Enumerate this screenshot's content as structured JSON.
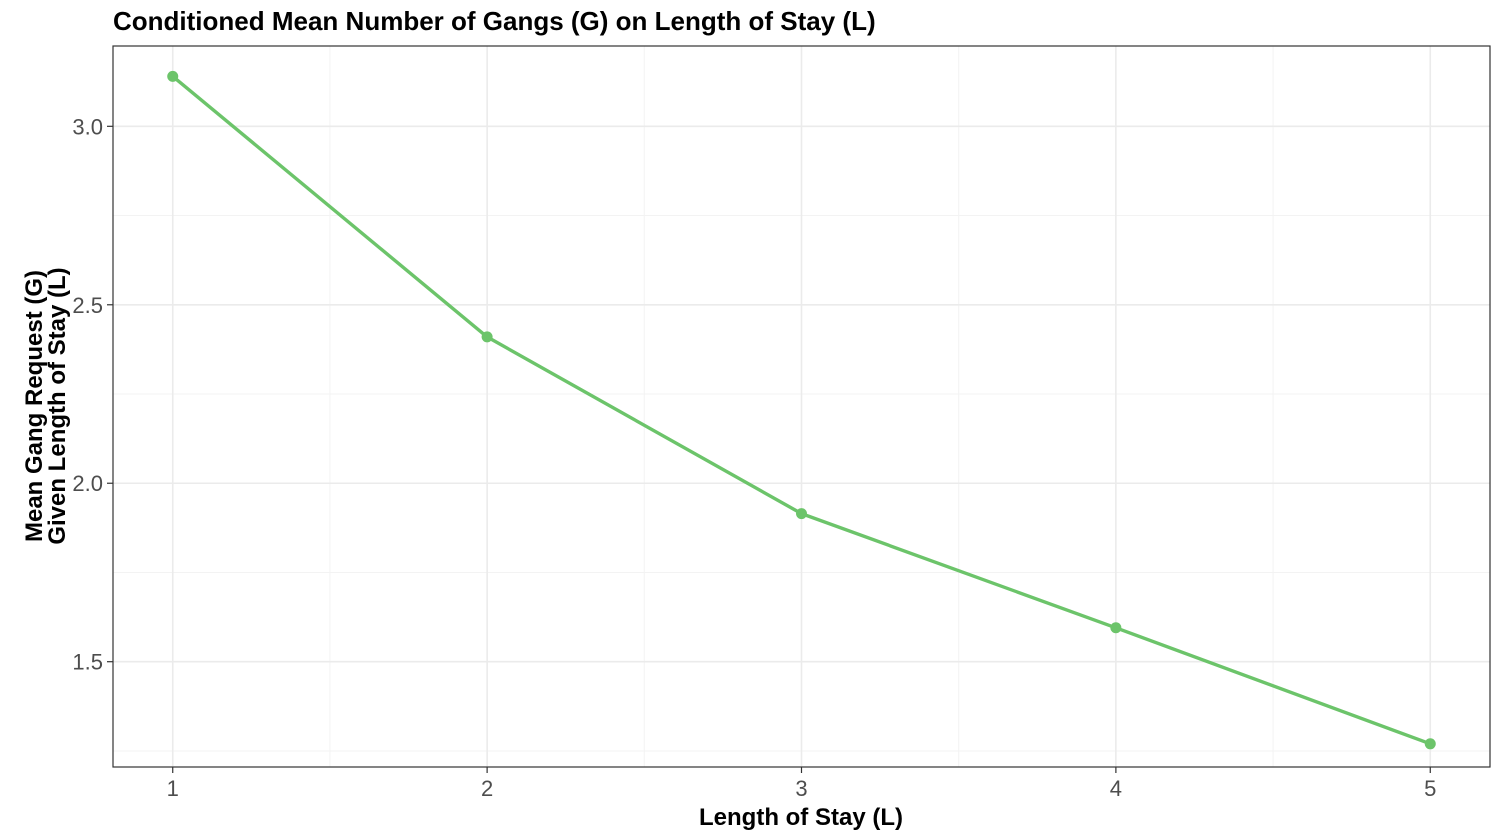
{
  "chart_data": {
    "type": "line",
    "title": "Conditioned Mean Number of Gangs (G) on Length of Stay (L)",
    "xlabel": "Length of Stay (L)",
    "ylabel_lines": [
      "Mean Gang Request (G)",
      "Given Length of Stay (L)"
    ],
    "x": [
      1,
      2,
      3,
      4,
      5
    ],
    "y": [
      3.14,
      2.41,
      1.915,
      1.595,
      1.27
    ],
    "xlim": [
      0.81,
      5.19
    ],
    "ylim": [
      1.205,
      3.225
    ],
    "x_ticks": [
      1,
      2,
      3,
      4,
      5
    ],
    "x_tick_labels": [
      "1",
      "2",
      "3",
      "4",
      "5"
    ],
    "y_ticks": [
      1.5,
      2.0,
      2.5,
      3.0
    ],
    "y_tick_labels": [
      "1.5",
      "2.0",
      "2.5",
      "3.0"
    ],
    "grid": true,
    "legend": "none",
    "series_color": "#6cc46a"
  }
}
